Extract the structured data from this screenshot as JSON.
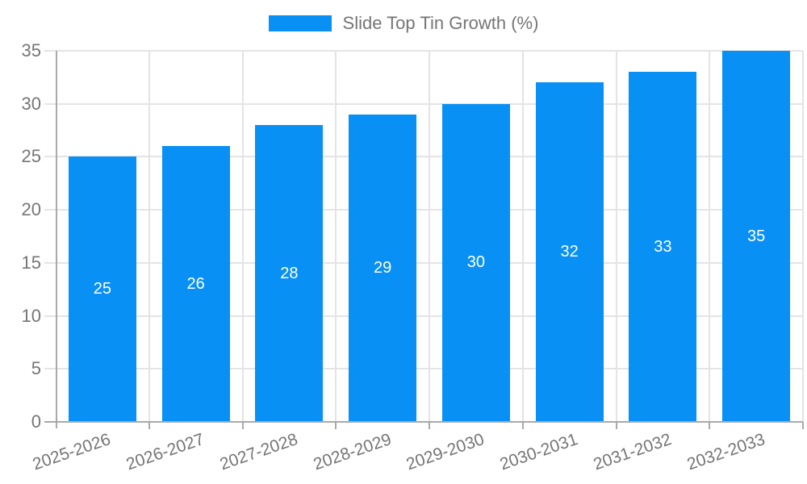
{
  "legend": {
    "label": "Slide Top Tin Growth (%)"
  },
  "chart_data": {
    "type": "bar",
    "title": "",
    "categories": [
      "2025-2026",
      "2026-2027",
      "2027-2028",
      "2028-2029",
      "2029-2030",
      "2030-2031",
      "2031-2032",
      "2032-2033"
    ],
    "values": [
      25,
      26,
      28,
      29,
      30,
      32,
      33,
      35
    ],
    "series": [
      {
        "name": "Slide Top Tin Growth (%)",
        "values": [
          25,
          26,
          28,
          29,
          30,
          32,
          33,
          35
        ]
      }
    ],
    "xlabel": "",
    "ylabel": "",
    "ylim": [
      0,
      35
    ],
    "yticks": [
      0,
      5,
      10,
      15,
      20,
      25,
      30,
      35
    ],
    "grid": true,
    "legend_position": "top",
    "bar_labels_visible": true,
    "colors": {
      "bar": "#0890F5",
      "bar_label": "#FFFFFF",
      "axis_text": "#757575",
      "gridline": "#E4E4E4",
      "axis_line": "#A9A9A9",
      "background": "#FFFFFF"
    }
  }
}
